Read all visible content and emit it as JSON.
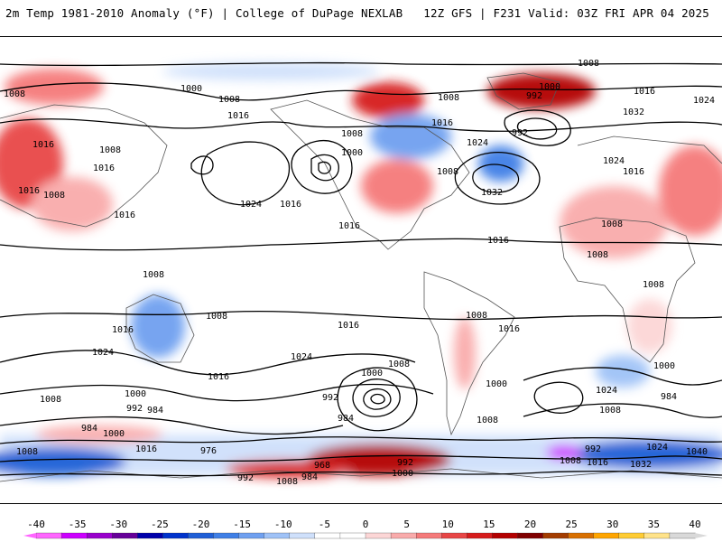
{
  "header": {
    "left_title": "2m Temp 1981-2010 Anomaly (°F) | College of DuPage NEXLAB",
    "right_title": "12Z GFS | F231 Valid: 03Z FRI APR 04 2025"
  },
  "colors": {
    "land_outline": "#555555",
    "contour": "#000000",
    "background": "#ffffff"
  },
  "isobar_labels": [
    {
      "text": "1008"
    },
    {
      "text": "1000"
    },
    {
      "text": "1008"
    },
    {
      "text": "1016"
    },
    {
      "text": "1016"
    },
    {
      "text": "1008"
    },
    {
      "text": "1016"
    },
    {
      "text": "1016"
    },
    {
      "text": "1024"
    },
    {
      "text": "1016"
    },
    {
      "text": "1008"
    },
    {
      "text": "1000"
    },
    {
      "text": "1016"
    },
    {
      "text": "1016"
    },
    {
      "text": "1008"
    },
    {
      "text": "1008"
    },
    {
      "text": "992"
    },
    {
      "text": "1024"
    },
    {
      "text": "1032"
    },
    {
      "text": "1016"
    },
    {
      "text": "1008"
    },
    {
      "text": "992"
    },
    {
      "text": "1000"
    },
    {
      "text": "1016"
    },
    {
      "text": "1024"
    },
    {
      "text": "1032"
    },
    {
      "text": "1024"
    },
    {
      "text": "1016"
    },
    {
      "text": "1008"
    },
    {
      "text": "1008"
    },
    {
      "text": "1008"
    },
    {
      "text": "1008"
    },
    {
      "text": "1016"
    },
    {
      "text": "1024"
    },
    {
      "text": "1016"
    },
    {
      "text": "1024"
    },
    {
      "text": "1016"
    },
    {
      "text": "1008"
    },
    {
      "text": "1000"
    },
    {
      "text": "1008"
    },
    {
      "text": "1008"
    },
    {
      "text": "1000"
    },
    {
      "text": "992"
    },
    {
      "text": "984"
    },
    {
      "text": "992"
    },
    {
      "text": "984"
    },
    {
      "text": "1000"
    },
    {
      "text": "1016"
    },
    {
      "text": "984"
    },
    {
      "text": "1016"
    },
    {
      "text": "1008"
    },
    {
      "text": "976"
    },
    {
      "text": "1000"
    },
    {
      "text": "1008"
    },
    {
      "text": "1016"
    },
    {
      "text": "1024"
    },
    {
      "text": "1008"
    },
    {
      "text": "984"
    },
    {
      "text": "992"
    },
    {
      "text": "1000"
    },
    {
      "text": "968"
    },
    {
      "text": "992"
    },
    {
      "text": "984"
    },
    {
      "text": "1008"
    },
    {
      "text": "1000"
    },
    {
      "text": "1008"
    },
    {
      "text": "992"
    },
    {
      "text": "1008"
    },
    {
      "text": "1016"
    },
    {
      "text": "1032"
    },
    {
      "text": "1024"
    },
    {
      "text": "1040"
    },
    {
      "text": "1008"
    }
  ],
  "colorbar": {
    "ticks": [
      "-40",
      "-35",
      "-30",
      "-25",
      "-20",
      "-15",
      "-10",
      "-5",
      "0",
      "5",
      "10",
      "15",
      "20",
      "25",
      "30",
      "35",
      "40"
    ],
    "colors": [
      "#ff66ff",
      "#cc00ff",
      "#9900cc",
      "#660099",
      "#0000aa",
      "#0033cc",
      "#1f5fd6",
      "#3f7fe6",
      "#6fa0f0",
      "#9fc2f7",
      "#cfe0fb",
      "#ffffff",
      "#ffffff",
      "#fcd6d6",
      "#f9abab",
      "#f57a7a",
      "#e84646",
      "#d61c1c",
      "#b30000",
      "#800000",
      "#a33c00",
      "#d86f00",
      "#ffa500",
      "#ffcc33",
      "#ffe38a",
      "#d9d9d9"
    ]
  }
}
